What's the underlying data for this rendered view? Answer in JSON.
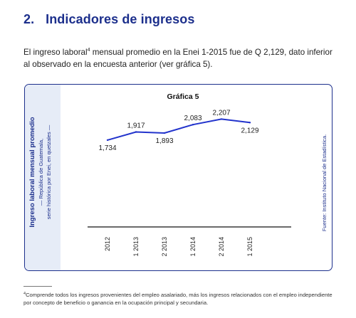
{
  "section": {
    "number": "2.",
    "title": "Indicadores de ingresos"
  },
  "intro": {
    "part1": "El ingreso laboral",
    "footnote_ref": "4",
    "part2": " mensual promedio en la Enei 1-2015 fue de Q 2,129, dato inferior al observado en la encuesta anterior (ver gráfica 5)."
  },
  "chart_data": {
    "type": "line",
    "title": "Gráfica 5",
    "ylabel": "Ingreso laboral mensual promedio",
    "ylabel_sub1": "— República de Guatemala,",
    "ylabel_sub2": "serie histórica por Enei, en quetzales —",
    "source": "Fuente: Instituto Nacional de Estadística.",
    "categories": [
      "2012",
      "1 2013",
      "2 2013",
      "1 2014",
      "2 2014",
      "1 2015"
    ],
    "values": [
      1734,
      1917,
      1893,
      2083,
      2207,
      2129
    ],
    "value_labels": [
      "1,734",
      "1,917",
      "1,893",
      "2,083",
      "2,207",
      "2,129"
    ],
    "ylim": [
      0,
      2300
    ],
    "grid": false,
    "line_color": "#2233cc"
  },
  "footnote": {
    "ref": "4",
    "text": "Comprende todos los ingresos provenientes del empleo asalariado, más los ingresos relacionados con el empleo independiente por concepto de beneficio o ganancia en la ocupación principal y secundaria."
  }
}
